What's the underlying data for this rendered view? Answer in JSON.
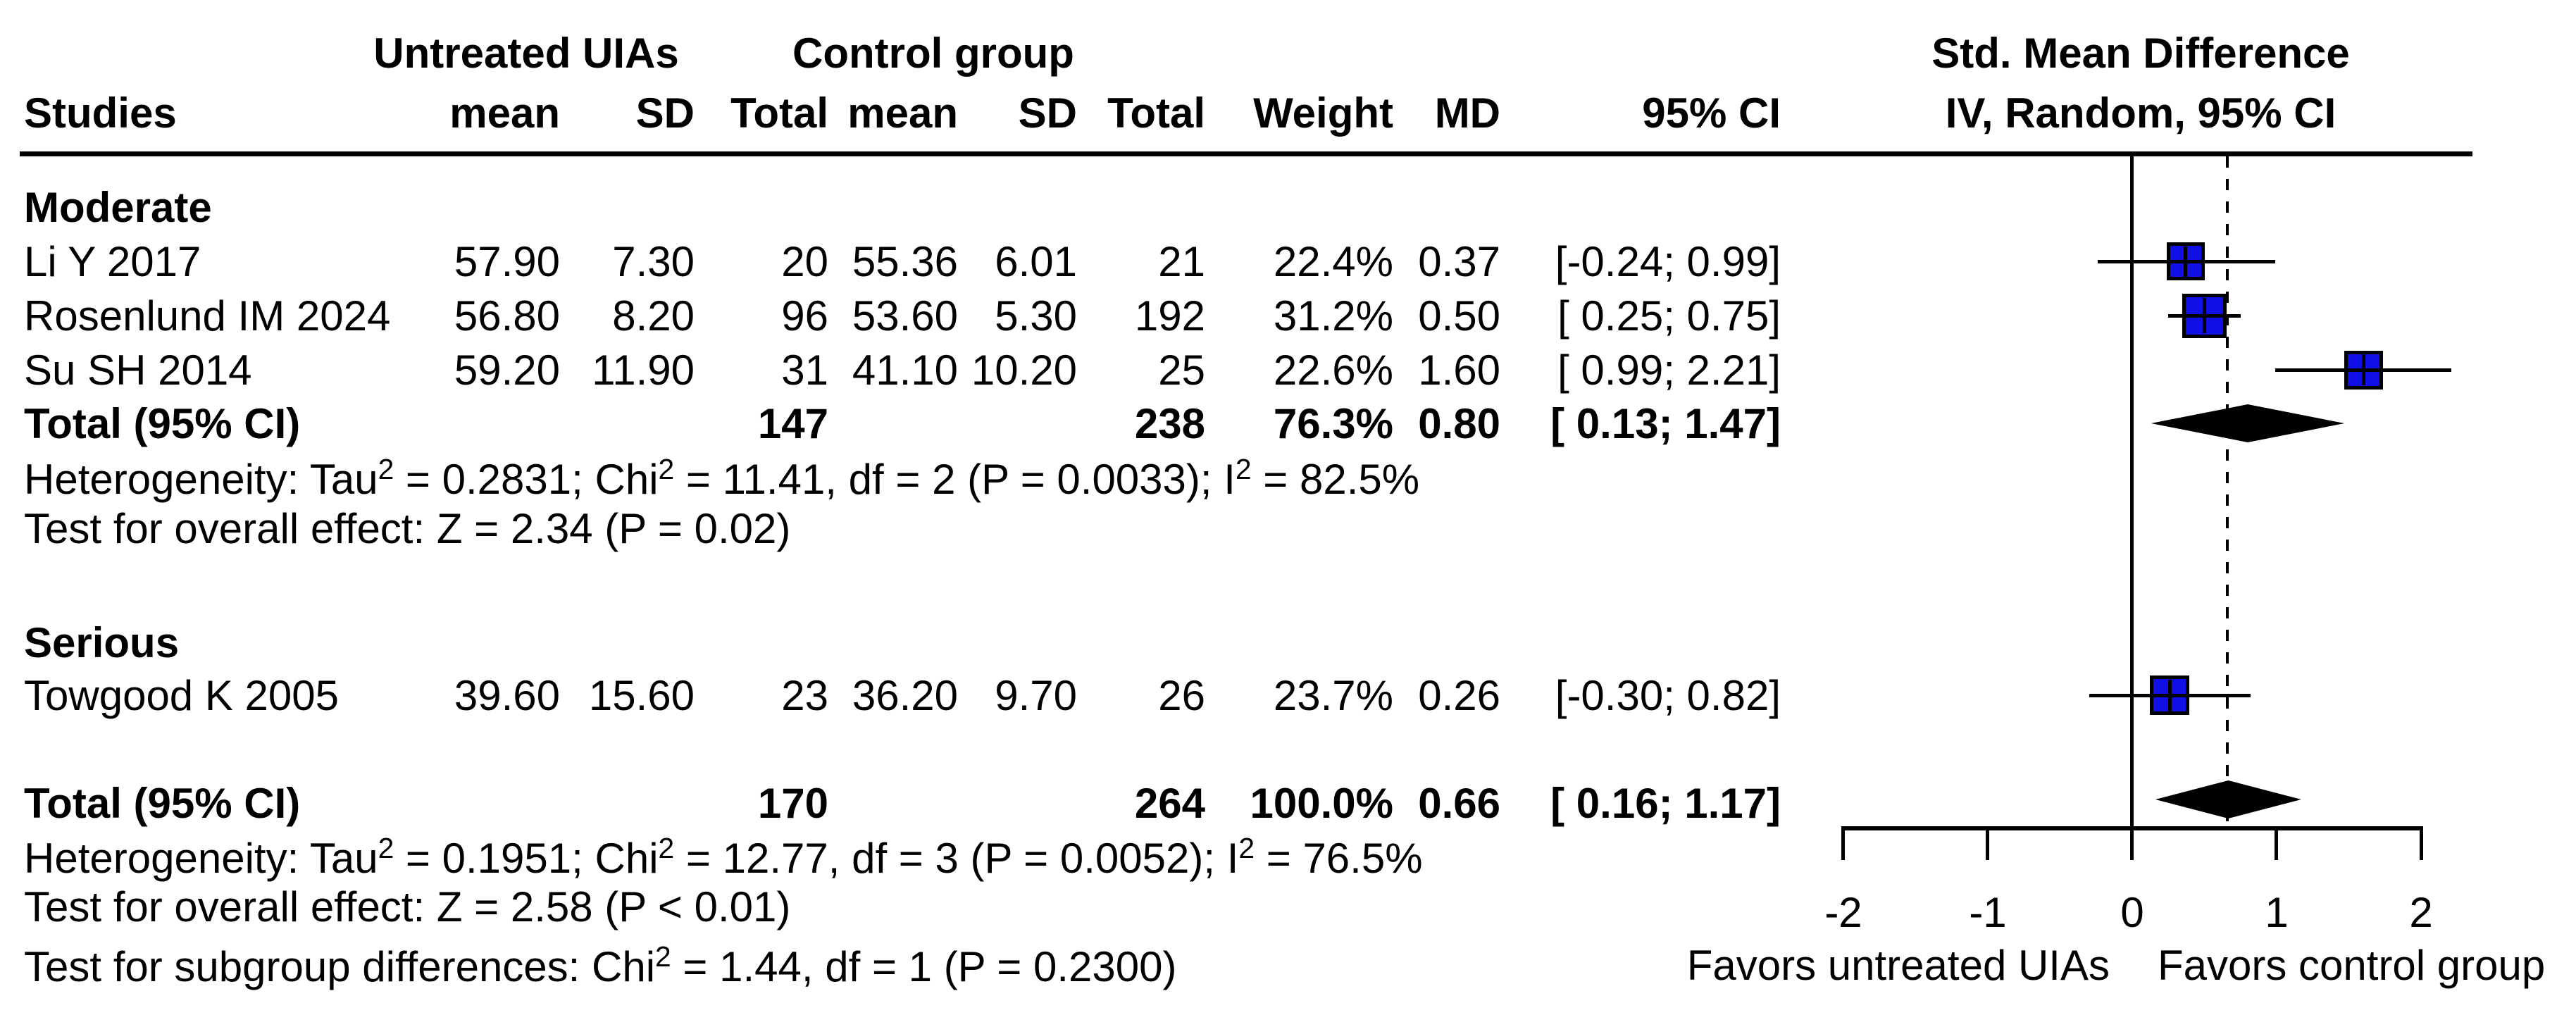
{
  "header": {
    "group_untreated": "Untreated UIAs",
    "group_control": "Control group",
    "effect_line1": "Std. Mean Difference",
    "effect_line2": "IV, Random, 95% CI",
    "col_studies": "Studies",
    "col_mean": "mean",
    "col_sd": "SD",
    "col_total": "Total",
    "col_weight": "Weight",
    "col_md": "MD",
    "col_ci": "95% CI"
  },
  "moderate": {
    "label": "Moderate",
    "rows": [
      {
        "study": "Li Y 2017",
        "mean1": "57.90",
        "sd1": "7.30",
        "total1": "20",
        "mean2": "55.36",
        "sd2": "6.01",
        "total2": "21",
        "weight": "22.4%",
        "md": "0.37",
        "ci": "[-0.24; 0.99]"
      },
      {
        "study": "Rosenlund IM 2024",
        "mean1": "56.80",
        "sd1": "8.20",
        "total1": "96",
        "mean2": "53.60",
        "sd2": "5.30",
        "total2": "192",
        "weight": "31.2%",
        "md": "0.50",
        "ci": "[ 0.25; 0.75]"
      },
      {
        "study": "Su SH 2014",
        "mean1": "59.20",
        "sd1": "11.90",
        "total1": "31",
        "mean2": "41.10",
        "sd2": "10.20",
        "total2": "25",
        "weight": "22.6%",
        "md": "1.60",
        "ci": "[ 0.99; 2.21]"
      }
    ],
    "total": {
      "label": "Total (95% CI)",
      "total1": "147",
      "total2": "238",
      "weight": "76.3%",
      "md": "0.80",
      "ci": "[ 0.13; 1.47]"
    },
    "heterogeneity": "Heterogeneity: Tau² = 0.2831; Chi² = 11.41, df = 2 (P = 0.0033); I² = 82.5%",
    "overall_effect": "Test for overall effect: Z = 2.34 (P = 0.02)"
  },
  "serious": {
    "label": "Serious",
    "rows": [
      {
        "study": "Towgood K 2005",
        "mean1": "39.60",
        "sd1": "15.60",
        "total1": "23",
        "mean2": "36.20",
        "sd2": "9.70",
        "total2": "26",
        "weight": "23.7%",
        "md": "0.26",
        "ci": "[-0.30; 0.82]"
      }
    ]
  },
  "overall": {
    "total": {
      "label": "Total (95% CI)",
      "total1": "170",
      "total2": "264",
      "weight": "100.0%",
      "md": "0.66",
      "ci": "[ 0.16; 1.17]"
    },
    "heterogeneity": "Heterogeneity: Tau² = 0.1951; Chi² = 12.77, df = 3 (P = 0.0052); I² = 76.5%",
    "overall_effect": "Test for overall effect: Z = 2.58 (P < 0.01)",
    "subgroup_diff": "Test for subgroup differences: Chi² = 1.44, df = 1 (P = 0.2300)"
  },
  "axis": {
    "ticks": [
      "-2",
      "-1",
      "0",
      "1",
      "2"
    ],
    "label_left": "Favors untreated UIAs",
    "label_right": "Favors control group"
  },
  "chart_data": {
    "type": "scatter",
    "subtype": "forest-plot",
    "title": "Std. Mean Difference, IV, Random, 95% CI",
    "xlabel_left": "Favors untreated UIAs",
    "xlabel_right": "Favors control group",
    "x_axis": {
      "range": [
        -2,
        2
      ],
      "ticks": [
        -2,
        -1,
        0,
        1,
        2
      ],
      "zero_line": 0,
      "dashed_reference_line": 0.66
    },
    "subgroups": [
      {
        "name": "Moderate",
        "studies": [
          {
            "study": "Li Y 2017",
            "md": 0.37,
            "ci_low": -0.24,
            "ci_high": 0.99,
            "weight_pct": 22.4
          },
          {
            "study": "Rosenlund IM 2024",
            "md": 0.5,
            "ci_low": 0.25,
            "ci_high": 0.75,
            "weight_pct": 31.2
          },
          {
            "study": "Su SH 2014",
            "md": 1.6,
            "ci_low": 0.99,
            "ci_high": 2.21,
            "weight_pct": 22.6
          }
        ],
        "total": {
          "md": 0.8,
          "ci_low": 0.13,
          "ci_high": 1.47,
          "weight_pct": 76.3,
          "n_treated": 147,
          "n_control": 238
        }
      },
      {
        "name": "Serious",
        "studies": [
          {
            "study": "Towgood K 2005",
            "md": 0.26,
            "ci_low": -0.3,
            "ci_high": 0.82,
            "weight_pct": 23.7
          }
        ]
      }
    ],
    "overall": {
      "md": 0.66,
      "ci_low": 0.16,
      "ci_high": 1.17,
      "weight_pct": 100.0,
      "n_treated": 170,
      "n_control": 264
    },
    "marker_color": "#0f0fe6",
    "summary_color": "#000000"
  }
}
